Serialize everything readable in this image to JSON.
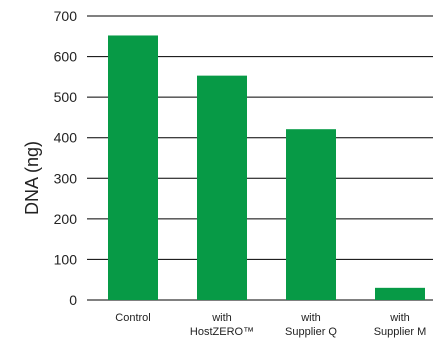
{
  "chart_data": {
    "type": "bar",
    "title": "",
    "xlabel": "",
    "ylabel": "DNA (ng)",
    "ylim": [
      0,
      700
    ],
    "yticks": [
      0,
      100,
      200,
      300,
      400,
      500,
      600,
      700
    ],
    "grid": true,
    "categories": [
      [
        "Control"
      ],
      [
        "with",
        "HostZERO™"
      ],
      [
        "with",
        "Supplier Q"
      ],
      [
        "with",
        "Supplier M"
      ]
    ],
    "values": [
      652,
      553,
      421,
      30
    ],
    "bar_color": "#079a46",
    "grid_color": "#000000"
  }
}
